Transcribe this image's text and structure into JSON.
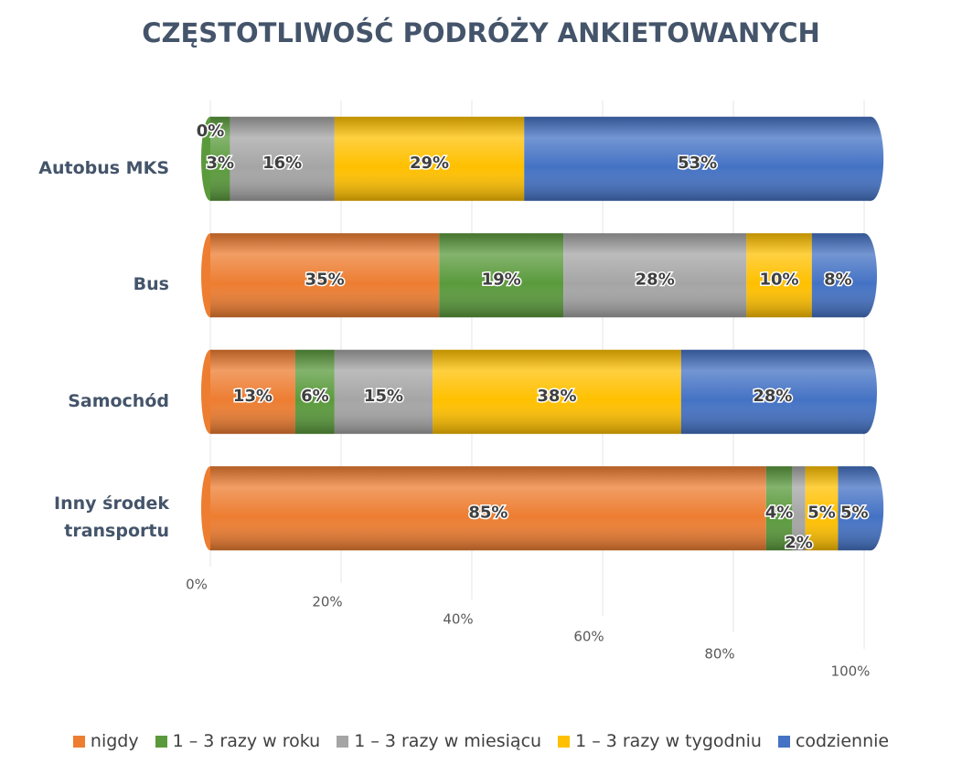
{
  "chart_data": {
    "type": "stacked-bar-horizontal",
    "title": "CZĘSTOTLIWOŚĆ PODRÓŻY ANKIETOWANYCH",
    "categories": [
      "Autobus MKS",
      "Bus",
      "Samochód",
      "Inny środek transportu"
    ],
    "series": [
      {
        "name": "nigdy",
        "color": "#ed7d31",
        "values": [
          0,
          35,
          13,
          85
        ],
        "value_labels": [
          "0%",
          "35%",
          "13%",
          "85%"
        ]
      },
      {
        "name": "1 – 3 razy w roku",
        "color": "#5a9a3c",
        "values": [
          3,
          19,
          6,
          4
        ],
        "value_labels": [
          "3%",
          "19%",
          "6%",
          "4%"
        ]
      },
      {
        "name": "1 – 3 razy w miesiącu",
        "color": "#a5a5a5",
        "values": [
          16,
          28,
          15,
          2
        ],
        "value_labels": [
          "16%",
          "28%",
          "15%",
          "2%"
        ]
      },
      {
        "name": "1 – 3 razy w tygodniu",
        "color": "#ffc000",
        "values": [
          29,
          10,
          38,
          5
        ],
        "value_labels": [
          "29%",
          "10%",
          "38%",
          "5%"
        ]
      },
      {
        "name": "codziennie",
        "color": "#4472c4",
        "values": [
          53,
          8,
          28,
          5
        ],
        "value_labels": [
          "53%",
          "8%",
          "28%",
          "5%"
        ]
      }
    ],
    "xlim": [
      0,
      100
    ],
    "xticks": [
      {
        "value": 0,
        "label": "0%"
      },
      {
        "value": 20,
        "label": "20%"
      },
      {
        "value": 40,
        "label": "40%"
      },
      {
        "value": 60,
        "label": "60%"
      },
      {
        "value": 80,
        "label": "80%"
      },
      {
        "value": 100,
        "label": "100%"
      }
    ],
    "grid": true,
    "legend": "bottom"
  }
}
